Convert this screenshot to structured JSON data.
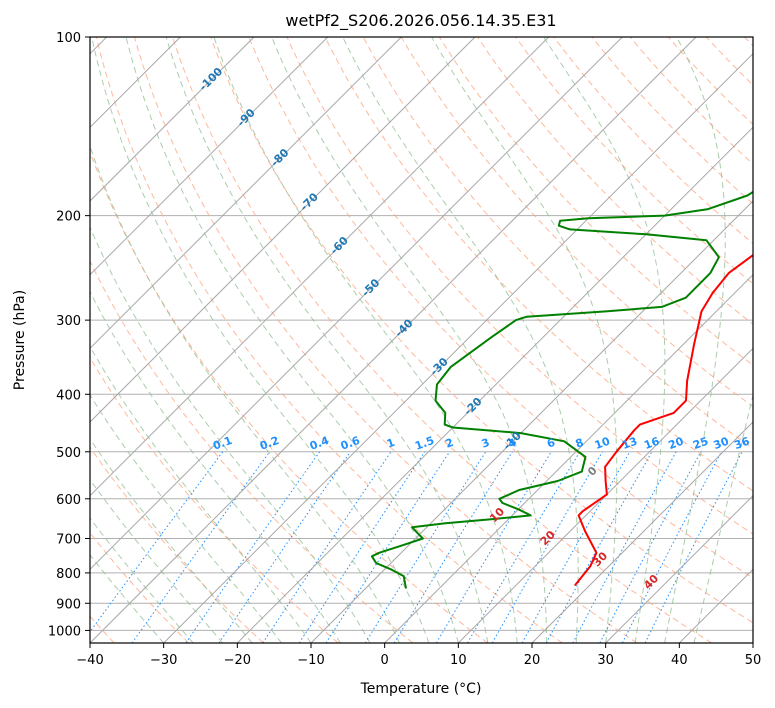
{
  "chart_data": {
    "type": "line",
    "title": "wetPf2_S206.2026.056.14.35.E31",
    "xlabel": "Temperature (°C)",
    "ylabel": "Pressure (hPa)",
    "xlim": [
      -40,
      50
    ],
    "ylim": [
      1050,
      100
    ],
    "y_scale": "log",
    "x_ticks": [
      -40,
      -30,
      -20,
      -10,
      0,
      10,
      20,
      30,
      40,
      50
    ],
    "y_ticks": [
      1000,
      900,
      800,
      700,
      600,
      500,
      400,
      300,
      200,
      100
    ],
    "grid": true,
    "colors": {
      "temperature": "#ff0000",
      "dewpoint": "#008000",
      "isotherm": "#999999",
      "dry_adiabat": "#ffa07a",
      "moist_adiabat": "#8fbc8f",
      "mixing_ratio": "#1e90ff",
      "dry_adiabat_label": "#1f77b4",
      "moist_adiabat_label": "#d62728",
      "zero_label": "#808080"
    },
    "series": [
      {
        "name": "",
        "kind": "temperature",
        "points": [
          [
            18,
            840
          ],
          [
            17.5,
            780
          ],
          [
            16.5,
            740
          ],
          [
            12,
            680
          ],
          [
            9,
            640
          ],
          [
            9,
            630
          ],
          [
            10,
            590
          ],
          [
            8,
            560
          ],
          [
            6,
            530
          ],
          [
            5.5,
            500
          ],
          [
            5,
            460
          ],
          [
            5,
            450
          ],
          [
            8,
            430
          ],
          [
            8,
            410
          ],
          [
            5.5,
            380
          ],
          [
            1.5,
            330
          ],
          [
            -2,
            290
          ],
          [
            -3,
            270
          ],
          [
            -3.5,
            250
          ],
          [
            -2.5,
            230
          ],
          [
            1,
            215
          ],
          [
            3.5,
            210
          ],
          [
            5.5,
            200
          ],
          [
            6,
            185
          ],
          [
            7.5,
            165
          ],
          [
            9.5,
            145
          ],
          [
            11,
            130
          ],
          [
            13,
            115
          ],
          [
            15,
            105
          ],
          [
            17.2,
            100
          ]
        ]
      },
      {
        "name": "",
        "kind": "dewpoint",
        "points": [
          [
            -4.5,
            850
          ],
          [
            -6.5,
            810
          ],
          [
            -9,
            790
          ],
          [
            -12,
            770
          ],
          [
            -13.5,
            750
          ],
          [
            -13,
            740
          ],
          [
            -11,
            720
          ],
          [
            -9,
            700
          ],
          [
            -10.5,
            685
          ],
          [
            -12,
            670
          ],
          [
            -8,
            660
          ],
          [
            -2.5,
            650
          ],
          [
            2.5,
            640
          ],
          [
            0,
            625
          ],
          [
            -3,
            610
          ],
          [
            -4,
            600
          ],
          [
            -2.5,
            580
          ],
          [
            1.5,
            560
          ],
          [
            3.5,
            540
          ],
          [
            2,
            510
          ],
          [
            -3,
            480
          ],
          [
            -10,
            465
          ],
          [
            -20,
            455
          ],
          [
            -21.5,
            450
          ],
          [
            -23,
            430
          ],
          [
            -26,
            410
          ],
          [
            -28,
            385
          ],
          [
            -28.5,
            360
          ],
          [
            -27,
            320
          ],
          [
            -26,
            300
          ],
          [
            -25,
            296
          ],
          [
            -15,
            290
          ],
          [
            -8,
            285
          ],
          [
            -6,
            275
          ],
          [
            -6,
            250
          ],
          [
            -7,
            235
          ],
          [
            -11,
            220
          ],
          [
            -20,
            215
          ],
          [
            -31,
            211
          ],
          [
            -33,
            208
          ],
          [
            -33.5,
            204
          ],
          [
            -30,
            202
          ],
          [
            -20,
            200
          ],
          [
            -15,
            195
          ],
          [
            -11.5,
            185
          ],
          [
            -10,
            172
          ],
          [
            -9,
            155
          ],
          [
            -8.5,
            140
          ],
          [
            -7,
            128
          ],
          [
            -4.5,
            117
          ],
          [
            -2,
            107
          ],
          [
            0,
            100
          ]
        ]
      }
    ],
    "dry_adiabat_labels": [
      "-100",
      "-90",
      "-80",
      "-70",
      "-60",
      "-50",
      "-40",
      "-30",
      "-20",
      "-10",
      "0"
    ],
    "moist_adiabat_labels": [
      "10",
      "20",
      "30",
      "40"
    ],
    "mixing_ratio_labels": [
      "0.1",
      "0.2",
      "0.4",
      "0.6",
      "1",
      "1.5",
      "2",
      "3",
      "4",
      "6",
      "8",
      "10",
      "13",
      "16",
      "20",
      "25",
      "30",
      "36"
    ]
  }
}
